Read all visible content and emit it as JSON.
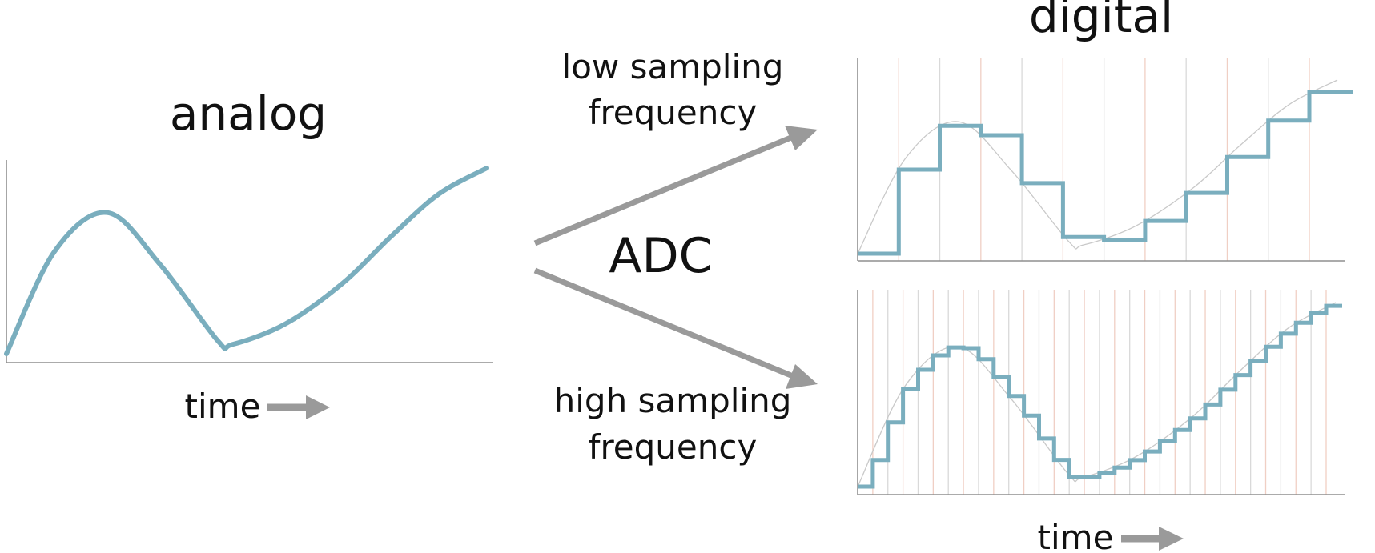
{
  "labels": {
    "analog": "analog",
    "digital": "digital",
    "adc": "ADC",
    "low_line1": "low sampling",
    "low_line2": "frequency",
    "high_line1": "high sampling",
    "high_line2": "frequency",
    "time_left": "time",
    "time_right": "time"
  },
  "colors": {
    "signal": "#7aaebe",
    "arrow": "#9a9a9a",
    "axis": "#8f8f8f",
    "gridline_salmon": "#f0cfc4",
    "gridline_gray": "#d9d9d9"
  },
  "diagram": {
    "signal_type": "continuous analog waveform",
    "low_sampling_steps": 11,
    "high_sampling_steps": 31
  }
}
